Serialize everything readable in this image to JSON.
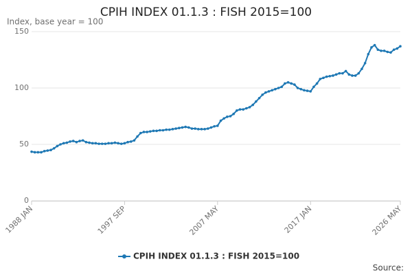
{
  "chart_data": {
    "type": "line",
    "title": "CPIH INDEX 01.1.3 : FISH 2015=100",
    "y_label": "Index, base year = 100",
    "source": "Source:",
    "categories": [
      "1988 JAN",
      null,
      null,
      null,
      null,
      null,
      null,
      null,
      null,
      null,
      null,
      null,
      null,
      null,
      null,
      null,
      null,
      null,
      null,
      null,
      null,
      null,
      null,
      null,
      null,
      null,
      null,
      null,
      null,
      "1997 SEP",
      null,
      null,
      null,
      null,
      null,
      null,
      null,
      null,
      null,
      null,
      null,
      null,
      null,
      null,
      null,
      null,
      null,
      null,
      null,
      null,
      null,
      null,
      null,
      null,
      null,
      null,
      null,
      null,
      "2007 MAY",
      null,
      null,
      null,
      null,
      null,
      null,
      null,
      null,
      null,
      null,
      null,
      null,
      null,
      null,
      null,
      null,
      null,
      null,
      null,
      null,
      null,
      null,
      null,
      null,
      null,
      null,
      null,
      null,
      "2017 JAN",
      null,
      null,
      null,
      null,
      null,
      null,
      null,
      null,
      null,
      null,
      null,
      null,
      null,
      null,
      null,
      null,
      null,
      null,
      null,
      null,
      null,
      null,
      null,
      null,
      null,
      null,
      null,
      "2026 MAY"
    ],
    "series": [
      {
        "name": "CPIH INDEX 01.1.3 : FISH 2015=100",
        "color": "#1e78b4",
        "values": [
          43.5,
          43,
          43,
          43,
          44,
          44.5,
          45,
          46.5,
          48.5,
          50,
          51,
          51.5,
          52.5,
          53,
          52,
          53,
          53.5,
          52,
          51.5,
          51,
          51,
          50.5,
          50.5,
          50.5,
          51,
          51,
          51.5,
          51,
          50.5,
          51,
          52,
          52.5,
          53.5,
          57,
          60,
          61,
          61,
          61.5,
          62,
          62,
          62.5,
          62.5,
          63,
          63,
          63.5,
          64,
          64.5,
          65,
          65.5,
          65,
          64,
          64,
          63.5,
          63.5,
          63.5,
          64,
          65,
          66,
          66.5,
          71,
          73,
          74.5,
          75,
          77,
          80,
          81,
          81,
          82,
          83,
          85,
          88,
          91,
          94,
          96,
          97,
          98,
          99,
          100,
          101,
          104,
          105,
          104,
          103,
          100,
          99,
          98,
          97.5,
          97,
          101,
          104,
          108,
          109,
          110,
          110.5,
          111,
          112,
          113,
          113,
          115,
          112,
          111,
          111,
          113,
          117,
          122,
          130,
          136,
          138,
          134,
          133,
          133,
          132,
          131.5,
          134,
          135,
          137
        ]
      }
    ],
    "ylim": [
      0,
      150
    ],
    "yticks": [
      0,
      50,
      100,
      150
    ],
    "grid": true
  }
}
